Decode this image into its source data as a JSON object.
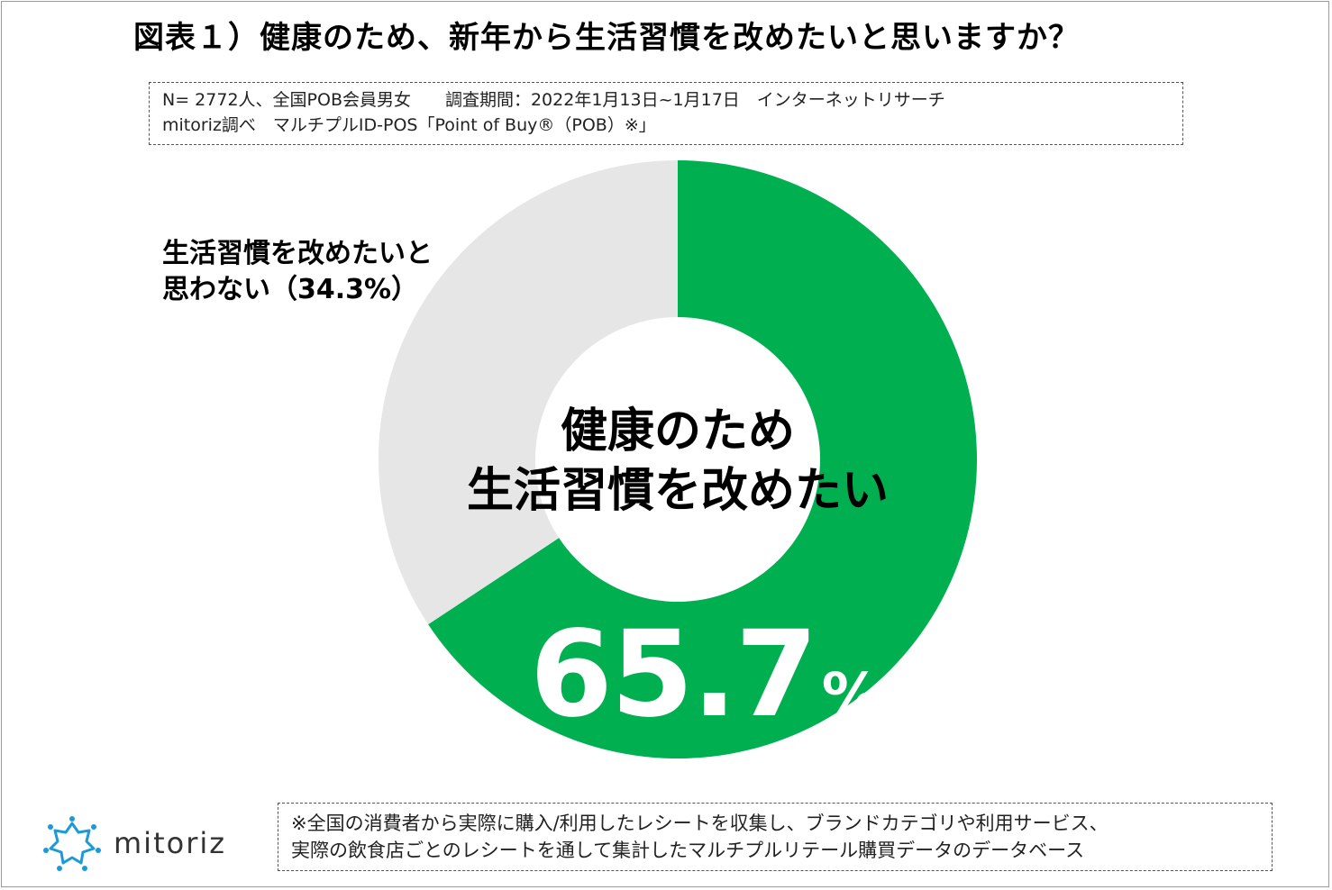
{
  "title": "図表１）健康のため、新年から生活習慣を改めたいと思いますか？",
  "source": {
    "line1": "N= 2772人、全国POB会員男女　　調査期間：2022年1月13日~1月17日　インターネットリサーチ",
    "line2": "mitoriz調べ　マルチプルID-POS「Point of Buy®（POB）※」"
  },
  "note": {
    "line1": "※全国の消費者から実際に購入/利用したレシートを収集し、ブランドカテゴリや利用サービス、",
    "line2": "実際の飲食店ごとのレシートを通して集計したマルチプルリテール購買データのデータベース"
  },
  "logo": {
    "text": "mitoriz",
    "icon": "mitoriz-logo-icon",
    "color": "#1a9ad6"
  },
  "chart_data": {
    "type": "pie",
    "donut": true,
    "title": "",
    "slices": [
      {
        "label_line1": "健康のため",
        "label_line2": "生活習慣を改めたい",
        "value": 65.7,
        "display_value": "65.7",
        "unit": "%",
        "color": "#00b050"
      },
      {
        "label_line1": "生活習慣を改めたいと",
        "label_line2": "思わない（34.3%）",
        "value": 34.3,
        "color": "#e6e6e6"
      }
    ],
    "start": "12 o'clock",
    "direction": "clockwise"
  }
}
